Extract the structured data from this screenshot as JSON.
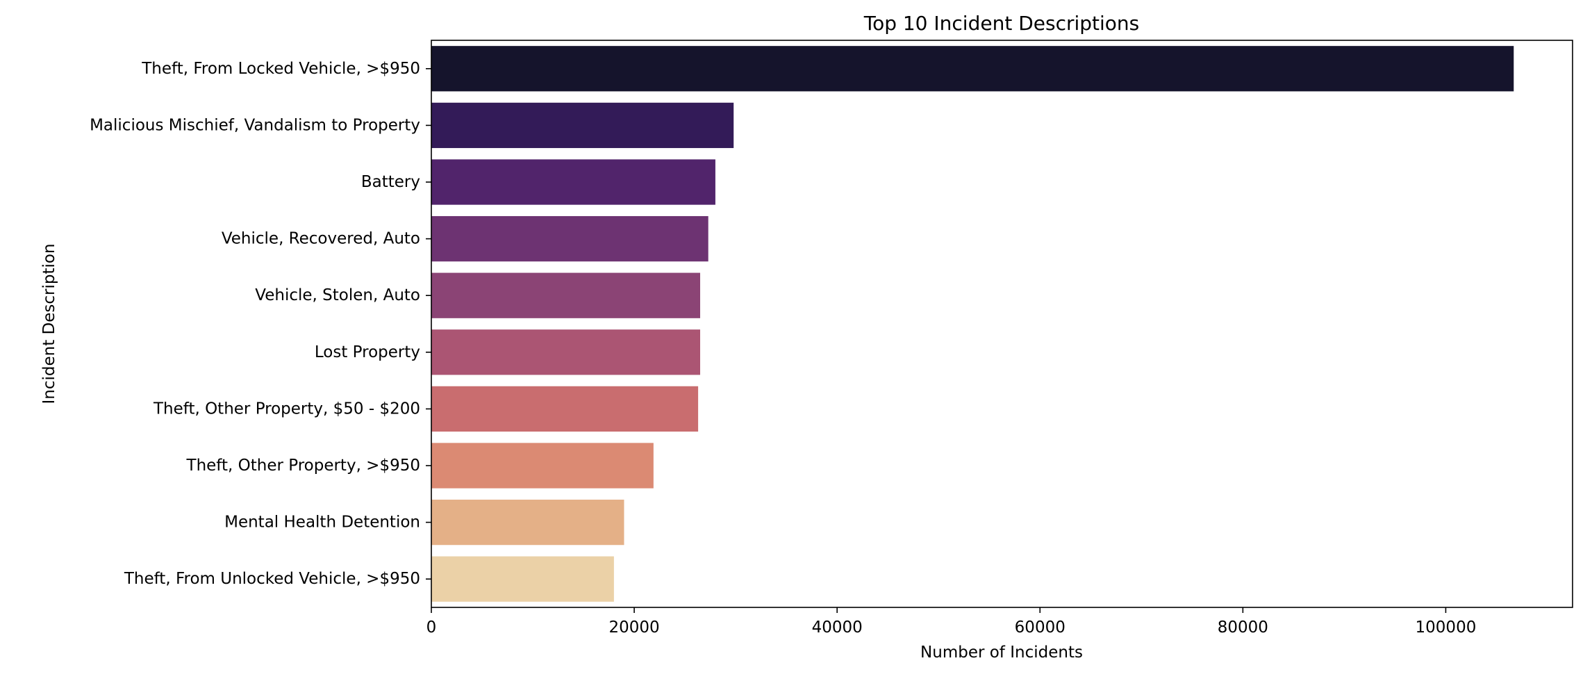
{
  "chart_data": {
    "type": "bar",
    "orientation": "horizontal",
    "title": "Top 10 Incident Descriptions",
    "xlabel": "Number of Incidents",
    "ylabel": "Incident Description",
    "xlim": [
      0,
      112500
    ],
    "xticks": [
      0,
      20000,
      40000,
      60000,
      80000,
      100000
    ],
    "grid": false,
    "categories": [
      "Theft, From Locked Vehicle, >$950",
      "Malicious Mischief, Vandalism to Property",
      "Battery",
      "Vehicle, Recovered, Auto",
      "Vehicle, Stolen, Auto",
      "Lost Property",
      "Theft, Other Property, $50 - $200",
      "Theft, Other Property, >$950",
      "Mental Health Detention",
      "Theft, From Unlocked Vehicle, >$950"
    ],
    "values": [
      106700,
      29800,
      28000,
      27300,
      26500,
      26500,
      26300,
      21900,
      19000,
      18000
    ],
    "colors": [
      "#15142c",
      "#331b58",
      "#51246b",
      "#6d3372",
      "#8b4475",
      "#ab5573",
      "#c96d6f",
      "#db8a73",
      "#e4b087",
      "#ebd1a7"
    ]
  }
}
